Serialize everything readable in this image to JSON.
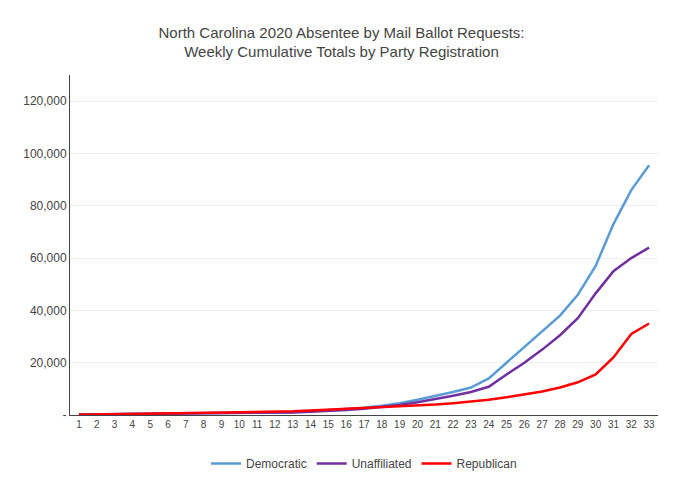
{
  "chart_data": {
    "type": "line",
    "title": "North Carolina 2020 Absentee by Mail Ballot Requests:\nWeekly Cumulative Totals by Party Registration",
    "x": [
      1,
      2,
      3,
      4,
      5,
      6,
      7,
      8,
      9,
      10,
      11,
      12,
      13,
      14,
      15,
      16,
      17,
      18,
      19,
      20,
      21,
      22,
      23,
      24,
      25,
      26,
      27,
      28,
      29,
      30,
      31,
      32,
      33
    ],
    "series": [
      {
        "name": "Democratic",
        "color": "#5B9BD5",
        "values": [
          200,
          280,
          320,
          360,
          400,
          440,
          480,
          560,
          640,
          720,
          840,
          980,
          1150,
          1400,
          1800,
          2200,
          2800,
          3500,
          4500,
          5800,
          7200,
          8800,
          10500,
          14000,
          20000,
          26000,
          32000,
          38000,
          46000,
          57000,
          73000,
          86000,
          95500
        ]
      },
      {
        "name": "Unaffiliated",
        "color": "#7030A0",
        "values": [
          150,
          220,
          260,
          300,
          340,
          380,
          420,
          470,
          540,
          620,
          730,
          860,
          1000,
          1200,
          1500,
          1900,
          2400,
          3000,
          3800,
          4900,
          6100,
          7400,
          8800,
          10800,
          15500,
          20000,
          25000,
          30500,
          37000,
          46500,
          55000,
          60000,
          64000
        ]
      },
      {
        "name": "Republican",
        "color": "#FF0000",
        "values": [
          100,
          200,
          350,
          450,
          500,
          550,
          700,
          800,
          900,
          1000,
          1100,
          1200,
          1400,
          1700,
          2000,
          2300,
          2600,
          2900,
          3200,
          3600,
          4000,
          4500,
          5100,
          5800,
          6800,
          7800,
          9000,
          10500,
          12500,
          15500,
          22000,
          31000,
          35000
        ]
      }
    ],
    "xlim": [
      0.5,
      33.5
    ],
    "xticks": [
      1,
      2,
      3,
      4,
      5,
      6,
      7,
      8,
      9,
      10,
      11,
      12,
      13,
      14,
      15,
      16,
      17,
      18,
      19,
      20,
      21,
      22,
      23,
      24,
      25,
      26,
      27,
      28,
      29,
      30,
      31,
      32,
      33
    ],
    "ylim": [
      0,
      130000
    ],
    "yticks": [
      {
        "value": 0,
        "label": "-"
      },
      {
        "value": 20000,
        "label": "20,000"
      },
      {
        "value": 40000,
        "label": "40,000"
      },
      {
        "value": 60000,
        "label": "60,000"
      },
      {
        "value": 80000,
        "label": "80,000"
      },
      {
        "value": 100000,
        "label": "100,000"
      },
      {
        "value": 120000,
        "label": "120,000"
      }
    ],
    "grid": true,
    "legend": "bottom"
  }
}
